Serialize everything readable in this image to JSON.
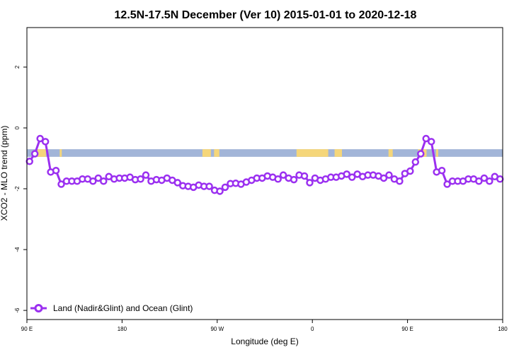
{
  "chart_data": {
    "type": "line",
    "title": "12.5N-17.5N December (Ver 10)   2015-01-01 to 2020-12-18",
    "xlabel": "Longitude (deg E)",
    "ylabel": "XCO2 - MLO trend (ppm)",
    "xlim": [
      90,
      540
    ],
    "ylim": [
      -6.3,
      3.3
    ],
    "x_ticks": [
      {
        "value": 90,
        "label": "90 E"
      },
      {
        "value": 180,
        "label": "180"
      },
      {
        "value": 270,
        "label": "90 W"
      },
      {
        "value": 360,
        "label": "0"
      },
      {
        "value": 450,
        "label": "90 E"
      },
      {
        "value": 540,
        "label": "180"
      }
    ],
    "y_ticks": [
      {
        "value": 2,
        "label": "2"
      },
      {
        "value": 0,
        "label": "0"
      },
      {
        "value": -2,
        "label": "-2"
      },
      {
        "value": -4,
        "label": "-4"
      },
      {
        "value": -6,
        "label": "-6"
      }
    ],
    "grid": false,
    "legend_position": "bottom-left",
    "land_ocean_strip": {
      "y_range": [
        -0.95,
        -0.7
      ],
      "ocean_color": "#A2B5D8",
      "land_color": "#F5D67A",
      "land_segments": [
        [
          100,
          108
        ],
        [
          121,
          123
        ],
        [
          256,
          264
        ],
        [
          267,
          272
        ],
        [
          345,
          375
        ],
        [
          381,
          388
        ],
        [
          432,
          436
        ],
        [
          460,
          468
        ],
        [
          477,
          479
        ]
      ]
    },
    "series": [
      {
        "name": "Land (Nadir&Glint) and Ocean (Glint)",
        "color": "#9B30F0",
        "x": [
          92.5,
          97.5,
          102.5,
          107.5,
          112.5,
          117.5,
          122.5,
          127.5,
          132.5,
          137.5,
          142.5,
          147.5,
          152.5,
          157.5,
          162.5,
          167.5,
          172.5,
          177.5,
          182.5,
          187.5,
          192.5,
          197.5,
          202.5,
          207.5,
          212.5,
          217.5,
          222.5,
          227.5,
          232.5,
          237.5,
          242.5,
          247.5,
          252.5,
          257.5,
          262.5,
          267.5,
          272.5,
          277.5,
          282.5,
          287.5,
          292.5,
          297.5,
          302.5,
          307.5,
          312.5,
          317.5,
          322.5,
          327.5,
          332.5,
          337.5,
          342.5,
          347.5,
          352.5,
          357.5,
          362.5,
          367.5,
          372.5,
          377.5,
          382.5,
          387.5,
          392.5,
          397.5,
          402.5,
          407.5,
          412.5,
          417.5,
          422.5,
          427.5,
          432.5,
          437.5,
          442.5,
          447.5,
          452.5,
          457.5,
          462.5,
          467.5,
          472.5,
          477.5,
          482.5,
          487.5,
          492.5,
          497.5,
          502.5,
          507.5,
          512.5,
          517.5,
          522.5,
          527.5,
          532.5,
          537.5
        ],
        "values": [
          -1.1,
          -0.85,
          -0.35,
          -0.45,
          -1.45,
          -1.4,
          -1.85,
          -1.75,
          -1.75,
          -1.75,
          -1.68,
          -1.68,
          -1.75,
          -1.65,
          -1.75,
          -1.6,
          -1.68,
          -1.65,
          -1.65,
          -1.62,
          -1.7,
          -1.68,
          -1.55,
          -1.75,
          -1.7,
          -1.72,
          -1.65,
          -1.72,
          -1.8,
          -1.9,
          -1.92,
          -1.95,
          -1.88,
          -1.92,
          -1.92,
          -2.05,
          -2.08,
          -1.95,
          -1.83,
          -1.82,
          -1.85,
          -1.78,
          -1.72,
          -1.65,
          -1.65,
          -1.58,
          -1.62,
          -1.68,
          -1.55,
          -1.65,
          -1.7,
          -1.55,
          -1.58,
          -1.8,
          -1.65,
          -1.72,
          -1.68,
          -1.62,
          -1.62,
          -1.58,
          -1.52,
          -1.62,
          -1.52,
          -1.6,
          -1.55,
          -1.55,
          -1.58,
          -1.65,
          -1.55,
          -1.68,
          -1.75,
          -1.5,
          -1.42,
          -1.12,
          -0.85,
          -0.35,
          -0.45,
          -1.45,
          -1.4,
          -1.85,
          -1.75,
          -1.75,
          -1.75,
          -1.68,
          -1.68,
          -1.75,
          -1.65,
          -1.75,
          -1.6,
          -1.68
        ]
      }
    ]
  }
}
